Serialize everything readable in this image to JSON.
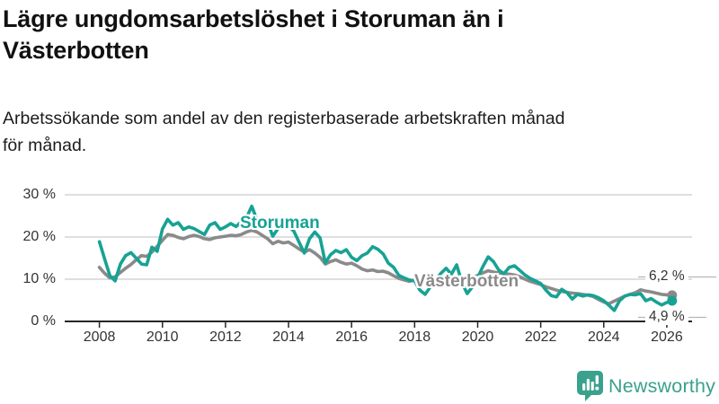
{
  "page": {
    "title": "Lägre ungdomsarbetslöshet i Storuman än i Västerbotten",
    "subtitle": "Arbetssökande som andel av den registerbaserade arbetskraften månad för månad."
  },
  "footer": {
    "brand": "Newsworthy",
    "logo_icon": "speech-bubble-bar-chart-icon"
  },
  "colors": {
    "storuman": "#17a294",
    "vasterbotten": "#8a8a8a",
    "axis": "#262626",
    "grid": "#cccccc",
    "guide": "#b5b5b5",
    "tick_text": "#333333",
    "brand_teal": "#3aa18d"
  },
  "chart_data": {
    "type": "line",
    "x_start": 2008,
    "x_step_years": 0.16667,
    "xlim": [
      2006.9,
      2026.8
    ],
    "ylim": [
      0,
      30
    ],
    "grid": true,
    "x_ticks": [
      2008,
      2010,
      2012,
      2014,
      2016,
      2018,
      2020,
      2022,
      2024,
      2026
    ],
    "y_ticks": [
      {
        "v": 0,
        "label": "0 %"
      },
      {
        "v": 10,
        "label": "10 %"
      },
      {
        "v": 20,
        "label": "20 %"
      },
      {
        "v": 30,
        "label": "30 %"
      }
    ],
    "ylabel": "",
    "xlabel": "",
    "series": [
      {
        "name": "Västerbotten",
        "color": "#8a8a8a",
        "end_label": "6,2 %",
        "last_value": 6.2,
        "values": [
          12.8,
          11.4,
          10.3,
          10.6,
          11.6,
          12.6,
          13.5,
          14.6,
          15.6,
          15.4,
          16.4,
          17.8,
          19.2,
          20.6,
          20.4,
          19.9,
          19.6,
          20.1,
          20.4,
          20.1,
          19.6,
          19.4,
          19.8,
          20.0,
          20.2,
          20.4,
          20.3,
          20.6,
          21.2,
          21.6,
          21.2,
          20.4,
          19.6,
          18.4,
          19.0,
          18.6,
          18.8,
          18.0,
          17.2,
          16.4,
          17.0,
          16.2,
          15.2,
          13.6,
          14.2,
          14.6,
          14.0,
          13.6,
          13.8,
          13.2,
          12.4,
          12.0,
          12.2,
          11.8,
          11.9,
          11.5,
          10.8,
          10.2,
          9.8,
          9.5,
          9.8,
          10.3,
          10.0,
          9.7,
          9.9,
          10.1,
          10.2,
          9.8,
          9.5,
          9.7,
          10.0,
          10.4,
          10.9,
          11.5,
          12.0,
          11.7,
          11.5,
          11.3,
          11.2,
          11.0,
          10.6,
          10.0,
          9.5,
          9.1,
          8.7,
          8.2,
          7.8,
          7.4,
          7.1,
          6.9,
          6.7,
          6.6,
          6.4,
          6.2,
          5.9,
          5.2,
          4.6,
          4.2,
          4.8,
          5.4,
          6.0,
          6.4,
          6.8,
          7.5,
          7.2,
          7.0,
          6.7,
          6.4,
          6.3,
          6.2
        ]
      },
      {
        "name": "Storuman",
        "color": "#17a294",
        "end_label": "4,9 %",
        "last_value": 4.9,
        "values": [
          18.9,
          14.8,
          10.8,
          9.6,
          13.6,
          15.6,
          16.3,
          15.0,
          13.6,
          13.4,
          17.6,
          16.6,
          21.9,
          24.2,
          22.8,
          23.4,
          21.8,
          22.4,
          22.0,
          21.3,
          20.6,
          22.8,
          23.4,
          21.8,
          22.4,
          23.2,
          22.5,
          23.6,
          24.6,
          27.3,
          24.0,
          23.0,
          23.6,
          20.2,
          22.0,
          23.2,
          22.6,
          21.4,
          18.8,
          16.2,
          19.6,
          21.2,
          19.8,
          13.9,
          15.8,
          16.8,
          16.3,
          17.0,
          15.2,
          14.4,
          15.6,
          16.2,
          17.7,
          17.1,
          16.0,
          13.8,
          12.8,
          10.9,
          10.3,
          9.8,
          9.6,
          7.4,
          6.4,
          8.2,
          9.8,
          11.4,
          12.6,
          11.2,
          13.4,
          9.2,
          6.6,
          8.2,
          10.4,
          13.0,
          15.3,
          14.2,
          12.2,
          11.3,
          12.8,
          13.2,
          12.1,
          11.0,
          10.2,
          9.6,
          9.0,
          7.4,
          6.1,
          5.8,
          7.6,
          6.8,
          5.3,
          6.4,
          6.0,
          6.3,
          6.1,
          5.6,
          4.9,
          3.8,
          2.6,
          4.9,
          6.0,
          6.4,
          6.3,
          6.6,
          4.9,
          5.4,
          4.6,
          3.9,
          4.5,
          4.9
        ]
      }
    ]
  }
}
